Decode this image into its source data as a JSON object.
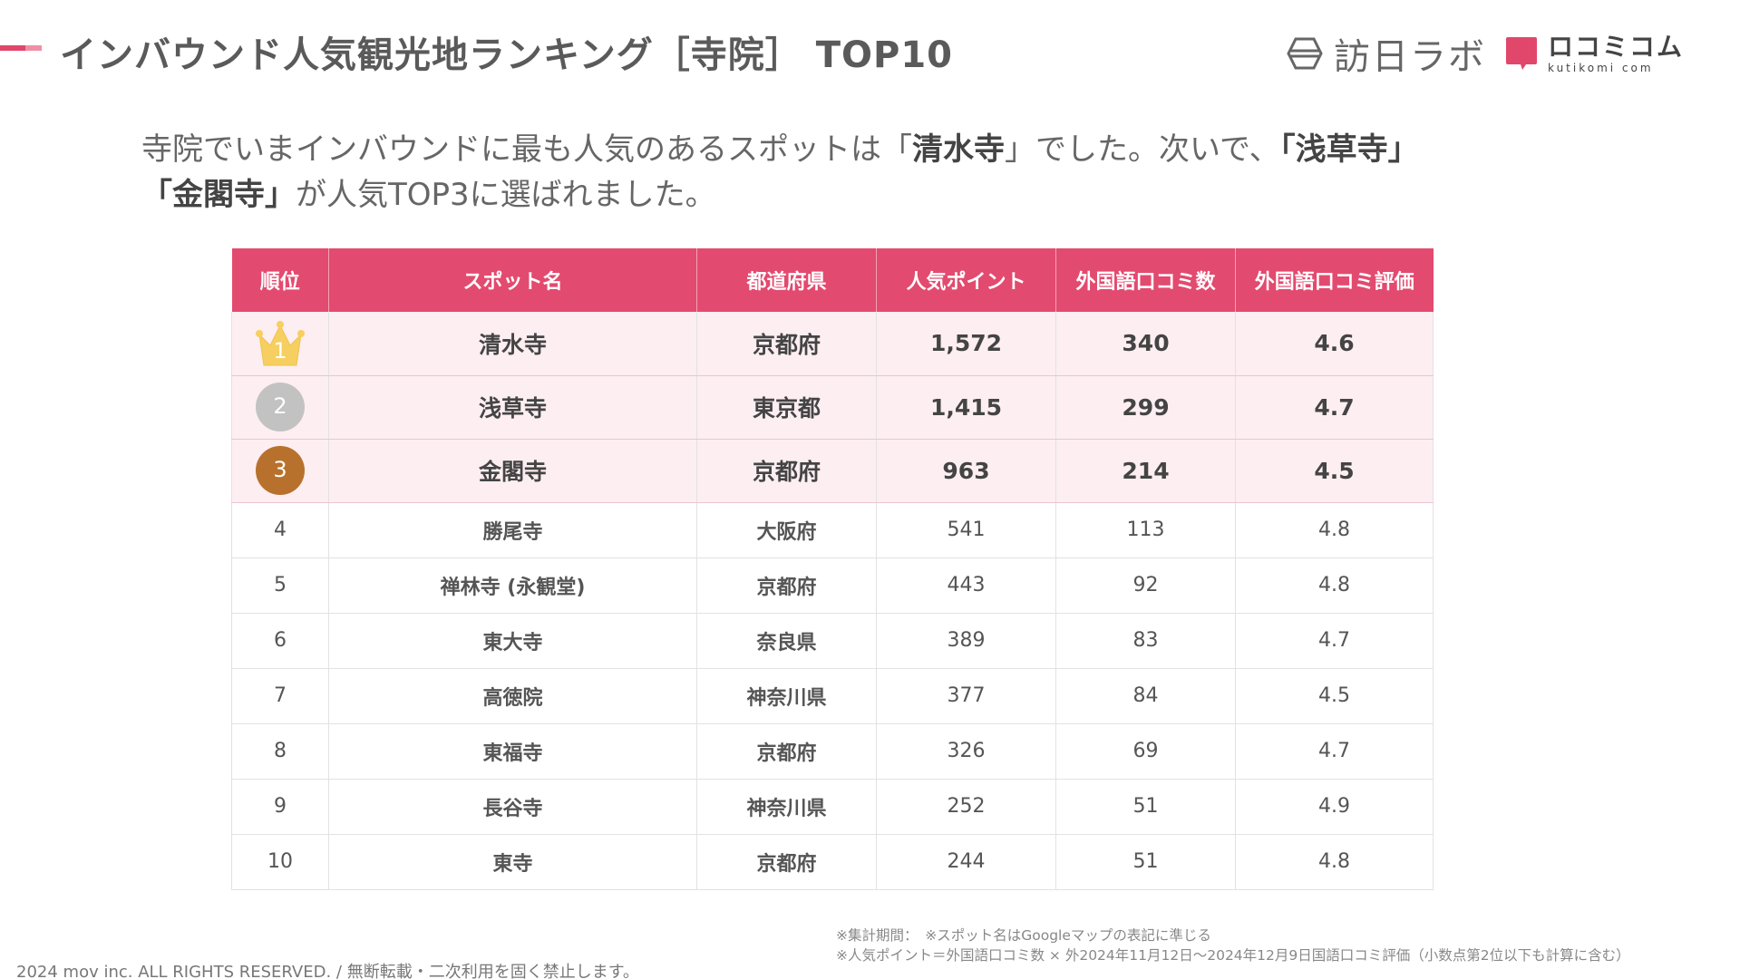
{
  "header": {
    "title": "インバウンド人気観光地ランキング［寺院］ TOP10",
    "accent_color": "#e0476b",
    "logo_hojin_text": "訪日ラボ",
    "logo_kuchikomi_text": "ロコミコム",
    "logo_kuchikomi_sub": "kutikomi com"
  },
  "lead": {
    "part1": "寺院でいまインバウンドに最も人気のあるスポットは「",
    "spot1": "清水寺",
    "part2": "」でした。次いで、",
    "spot2": "「浅草寺」",
    "spot3": "「金閣寺」",
    "part3": "が人気TOP3に選ばれました。"
  },
  "table": {
    "header_color": "#e34a6f",
    "columns": [
      "順位",
      "スポット名",
      "都道府県",
      "人気ポイント",
      "外国語口コミ数",
      "外国語口コミ評価"
    ],
    "rows": [
      {
        "rank": "1",
        "name": "清水寺",
        "pref": "京都府",
        "points": "1,572",
        "reviews": "340",
        "rating": "4.6",
        "icon": "gold-crown-icon"
      },
      {
        "rank": "2",
        "name": "浅草寺",
        "pref": "東京都",
        "points": "1,415",
        "reviews": "299",
        "rating": "4.7",
        "icon": "silver-medal-icon"
      },
      {
        "rank": "3",
        "name": "金閣寺",
        "pref": "京都府",
        "points": "963",
        "reviews": "214",
        "rating": "4.5",
        "icon": "bronze-medal-icon"
      },
      {
        "rank": "4",
        "name": "勝尾寺",
        "pref": "大阪府",
        "points": "541",
        "reviews": "113",
        "rating": "4.8"
      },
      {
        "rank": "5",
        "name": "禅林寺 (永観堂)",
        "pref": "京都府",
        "points": "443",
        "reviews": "92",
        "rating": "4.8"
      },
      {
        "rank": "6",
        "name": "東大寺",
        "pref": "奈良県",
        "points": "389",
        "reviews": "83",
        "rating": "4.7"
      },
      {
        "rank": "7",
        "name": "高徳院",
        "pref": "神奈川県",
        "points": "377",
        "reviews": "84",
        "rating": "4.5"
      },
      {
        "rank": "8",
        "name": "東福寺",
        "pref": "京都府",
        "points": "326",
        "reviews": "69",
        "rating": "4.7"
      },
      {
        "rank": "9",
        "name": "長谷寺",
        "pref": "神奈川県",
        "points": "252",
        "reviews": "51",
        "rating": "4.9"
      },
      {
        "rank": "10",
        "name": "東寺",
        "pref": "京都府",
        "points": "244",
        "reviews": "51",
        "rating": "4.8"
      }
    ]
  },
  "footnote": {
    "line1": "※集計期間：　※スポット名はGoogleマップの表記に準じる",
    "line2": "※人気ポイント＝外国語口コミ数 × 外2024年11月12日〜2024年12月9日国語口コミ評価（小数点第2位以下も計算に含む）"
  },
  "copyright": "2024 mov inc. ALL RIGHTS RESERVED. / 無断転載・二次利用を固く禁止します。"
}
